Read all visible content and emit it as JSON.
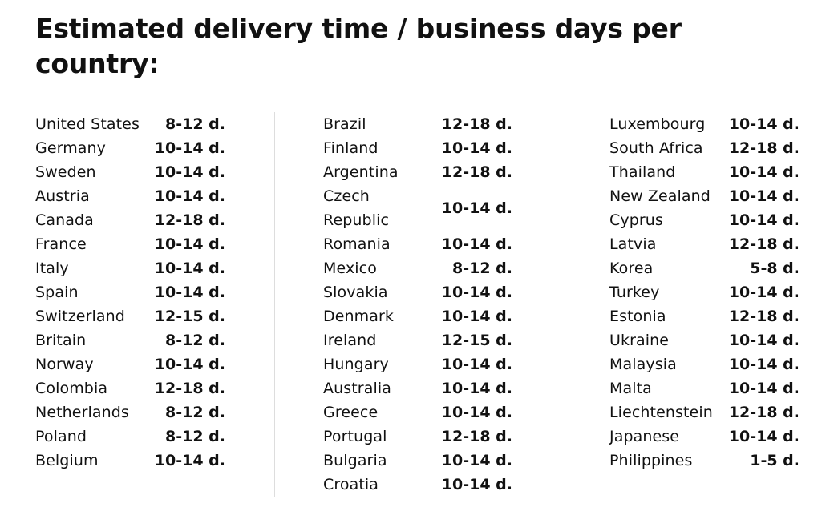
{
  "title": "Estimated delivery time / business days per country:",
  "columns": [
    {
      "rows": [
        {
          "country": "United States",
          "days": "8-12 d."
        },
        {
          "country": "Germany",
          "days": "10-14 d."
        },
        {
          "country": "Sweden",
          "days": "10-14 d."
        },
        {
          "country": "Austria",
          "days": "10-14 d."
        },
        {
          "country": "Canada",
          "days": "12-18 d."
        },
        {
          "country": "France",
          "days": "10-14 d."
        },
        {
          "country": "Italy",
          "days": "10-14 d."
        },
        {
          "country": "Spain",
          "days": "10-14 d."
        },
        {
          "country": "Switzerland",
          "days": "12-15 d."
        },
        {
          "country": "Britain",
          "days": "8-12 d."
        },
        {
          "country": "Norway",
          "days": "10-14 d."
        },
        {
          "country": "Colombia",
          "days": "12-18 d."
        },
        {
          "country": "Netherlands",
          "days": "8-12 d."
        },
        {
          "country": "Poland",
          "days": "8-12 d."
        },
        {
          "country": "Belgium",
          "days": "10-14 d."
        }
      ]
    },
    {
      "rows": [
        {
          "country": "Brazil",
          "days": "12-18 d."
        },
        {
          "country": "Finland",
          "days": "10-14 d."
        },
        {
          "country": "Argentina",
          "days": "12-18 d."
        },
        {
          "country": "Czech Republic",
          "days": "10-14 d."
        },
        {
          "country": "Romania",
          "days": "10-14 d."
        },
        {
          "country": "Mexico",
          "days": "8-12 d."
        },
        {
          "country": "Slovakia",
          "days": "10-14 d."
        },
        {
          "country": "Denmark",
          "days": "10-14 d."
        },
        {
          "country": "Ireland",
          "days": "12-15 d."
        },
        {
          "country": "Hungary",
          "days": "10-14 d."
        },
        {
          "country": "Australia",
          "days": "10-14 d."
        },
        {
          "country": "Greece",
          "days": "10-14 d."
        },
        {
          "country": "Portugal",
          "days": "12-18 d."
        },
        {
          "country": "Bulgaria",
          "days": "10-14 d."
        },
        {
          "country": "Croatia",
          "days": "10-14 d."
        }
      ]
    },
    {
      "rows": [
        {
          "country": "Luxembourg",
          "days": "10-14 d."
        },
        {
          "country": "South Africa",
          "days": "12-18 d."
        },
        {
          "country": "Thailand",
          "days": "10-14 d."
        },
        {
          "country": "New Zealand",
          "days": "10-14 d."
        },
        {
          "country": "Cyprus",
          "days": "10-14 d."
        },
        {
          "country": "Latvia",
          "days": "12-18 d."
        },
        {
          "country": "Korea",
          "days": "5-8 d."
        },
        {
          "country": "Turkey",
          "days": "10-14 d."
        },
        {
          "country": "Estonia",
          "days": "12-18 d."
        },
        {
          "country": "Ukraine",
          "days": "10-14 d."
        },
        {
          "country": "Malaysia",
          "days": "10-14 d."
        },
        {
          "country": "Malta",
          "days": "10-14 d."
        },
        {
          "country": "Liechtenstein",
          "days": "12-18 d."
        },
        {
          "country": "Japanese",
          "days": "10-14 d."
        },
        {
          "country": "Philippines",
          "days": "1-5 d."
        }
      ]
    }
  ]
}
